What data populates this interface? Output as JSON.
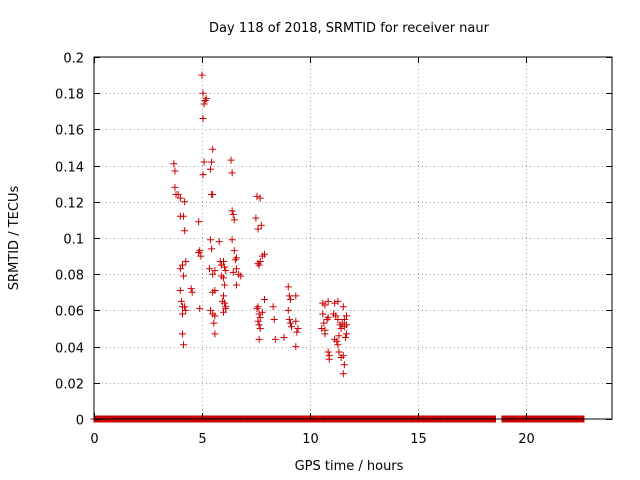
{
  "chart_data": {
    "type": "scatter",
    "title": "Day 118 of 2018, SRMTID for receiver naur",
    "xlabel": "GPS time / hours",
    "ylabel": "SRMTID / TECUs",
    "xlim": [
      0,
      24
    ],
    "ylim": [
      0,
      0.2
    ],
    "xticks": [
      0,
      5,
      10,
      15,
      20
    ],
    "yticks": [
      0,
      0.02,
      0.04,
      0.06,
      0.08,
      0.1,
      0.12,
      0.14,
      0.16,
      0.18,
      0.2
    ],
    "grid": true,
    "marker": "+",
    "color": "#cc0000",
    "series": [
      {
        "name": "SRMTID",
        "points": [
          [
            3.7,
            0.141
          ],
          [
            3.75,
            0.137
          ],
          [
            3.75,
            0.128
          ],
          [
            3.8,
            0.124
          ],
          [
            3.9,
            0.124
          ],
          [
            4.0,
            0.122
          ],
          [
            4.0,
            0.112
          ],
          [
            4.15,
            0.112
          ],
          [
            4.2,
            0.12
          ],
          [
            4.2,
            0.104
          ],
          [
            4.25,
            0.087
          ],
          [
            4.0,
            0.083
          ],
          [
            4.1,
            0.085
          ],
          [
            4.15,
            0.079
          ],
          [
            4.0,
            0.071
          ],
          [
            4.05,
            0.065
          ],
          [
            4.1,
            0.062
          ],
          [
            4.1,
            0.058
          ],
          [
            4.2,
            0.062
          ],
          [
            4.25,
            0.06
          ],
          [
            4.1,
            0.047
          ],
          [
            4.15,
            0.041
          ],
          [
            4.5,
            0.072
          ],
          [
            4.55,
            0.07
          ],
          [
            4.85,
            0.109
          ],
          [
            4.85,
            0.092
          ],
          [
            4.9,
            0.093
          ],
          [
            4.95,
            0.09
          ],
          [
            4.9,
            0.061
          ],
          [
            5.0,
            0.19
          ],
          [
            5.05,
            0.18
          ],
          [
            5.1,
            0.174
          ],
          [
            5.15,
            0.176
          ],
          [
            5.2,
            0.177
          ],
          [
            5.05,
            0.166
          ],
          [
            5.1,
            0.142
          ],
          [
            5.05,
            0.135
          ],
          [
            5.5,
            0.149
          ],
          [
            5.45,
            0.142
          ],
          [
            5.4,
            0.138
          ],
          [
            5.45,
            0.124
          ],
          [
            5.5,
            0.124
          ],
          [
            5.4,
            0.099
          ],
          [
            5.45,
            0.094
          ],
          [
            5.35,
            0.083
          ],
          [
            5.5,
            0.08
          ],
          [
            5.6,
            0.071
          ],
          [
            5.5,
            0.07
          ],
          [
            5.6,
            0.082
          ],
          [
            5.4,
            0.06
          ],
          [
            5.5,
            0.058
          ],
          [
            5.6,
            0.057
          ],
          [
            5.55,
            0.053
          ],
          [
            5.6,
            0.047
          ],
          [
            5.8,
            0.098
          ],
          [
            5.85,
            0.087
          ],
          [
            5.9,
            0.085
          ],
          [
            6.0,
            0.087
          ],
          [
            6.05,
            0.084
          ],
          [
            5.9,
            0.079
          ],
          [
            6.0,
            0.078
          ],
          [
            6.1,
            0.082
          ],
          [
            6.05,
            0.074
          ],
          [
            6.0,
            0.068
          ],
          [
            5.95,
            0.065
          ],
          [
            6.05,
            0.064
          ],
          [
            6.1,
            0.062
          ],
          [
            6.0,
            0.059
          ],
          [
            6.1,
            0.061
          ],
          [
            6.35,
            0.143
          ],
          [
            6.4,
            0.136
          ],
          [
            6.4,
            0.115
          ],
          [
            6.45,
            0.113
          ],
          [
            6.5,
            0.11
          ],
          [
            6.4,
            0.099
          ],
          [
            6.5,
            0.093
          ],
          [
            6.55,
            0.088
          ],
          [
            6.6,
            0.089
          ],
          [
            6.45,
            0.081
          ],
          [
            6.6,
            0.083
          ],
          [
            6.7,
            0.08
          ],
          [
            6.8,
            0.079
          ],
          [
            6.6,
            0.074
          ],
          [
            7.55,
            0.123
          ],
          [
            7.7,
            0.122
          ],
          [
            7.5,
            0.111
          ],
          [
            7.6,
            0.105
          ],
          [
            7.75,
            0.107
          ],
          [
            7.6,
            0.086
          ],
          [
            7.65,
            0.085
          ],
          [
            7.7,
            0.087
          ],
          [
            7.8,
            0.09
          ],
          [
            7.9,
            0.091
          ],
          [
            7.55,
            0.061
          ],
          [
            7.6,
            0.062
          ],
          [
            7.65,
            0.058
          ],
          [
            7.7,
            0.056
          ],
          [
            7.6,
            0.054
          ],
          [
            7.65,
            0.052
          ],
          [
            7.7,
            0.05
          ],
          [
            7.8,
            0.059
          ],
          [
            7.9,
            0.066
          ],
          [
            7.65,
            0.044
          ],
          [
            8.3,
            0.062
          ],
          [
            8.35,
            0.055
          ],
          [
            8.4,
            0.044
          ],
          [
            8.8,
            0.045
          ],
          [
            9.0,
            0.073
          ],
          [
            9.05,
            0.068
          ],
          [
            9.1,
            0.066
          ],
          [
            9.0,
            0.06
          ],
          [
            9.05,
            0.055
          ],
          [
            9.1,
            0.053
          ],
          [
            9.15,
            0.051
          ],
          [
            9.35,
            0.068
          ],
          [
            9.35,
            0.054
          ],
          [
            9.45,
            0.05
          ],
          [
            9.4,
            0.048
          ],
          [
            9.35,
            0.04
          ],
          [
            10.6,
            0.064
          ],
          [
            10.7,
            0.063
          ],
          [
            10.85,
            0.065
          ],
          [
            10.6,
            0.058
          ],
          [
            10.65,
            0.053
          ],
          [
            10.55,
            0.05
          ],
          [
            10.7,
            0.049
          ],
          [
            10.7,
            0.047
          ],
          [
            10.8,
            0.055
          ],
          [
            10.85,
            0.056
          ],
          [
            10.85,
            0.037
          ],
          [
            10.9,
            0.035
          ],
          [
            10.9,
            0.033
          ],
          [
            11.15,
            0.064
          ],
          [
            11.3,
            0.065
          ],
          [
            11.1,
            0.058
          ],
          [
            11.2,
            0.057
          ],
          [
            11.3,
            0.055
          ],
          [
            11.15,
            0.044
          ],
          [
            11.25,
            0.043
          ],
          [
            11.35,
            0.046
          ],
          [
            11.3,
            0.041
          ],
          [
            11.4,
            0.052
          ],
          [
            11.45,
            0.05
          ],
          [
            11.5,
            0.053
          ],
          [
            11.55,
            0.062
          ],
          [
            11.6,
            0.055
          ],
          [
            11.6,
            0.051
          ],
          [
            11.7,
            0.057
          ],
          [
            11.7,
            0.052
          ],
          [
            11.35,
            0.037
          ],
          [
            11.45,
            0.034
          ],
          [
            11.55,
            0.035
          ],
          [
            11.6,
            0.03
          ],
          [
            11.55,
            0.025
          ],
          [
            11.65,
            0.045
          ],
          [
            11.7,
            0.047
          ]
        ],
        "zero_coverage_hours": [
          [
            0,
            18.6
          ],
          [
            18.9,
            22.7
          ]
        ],
        "zero_level": 0
      }
    ]
  }
}
